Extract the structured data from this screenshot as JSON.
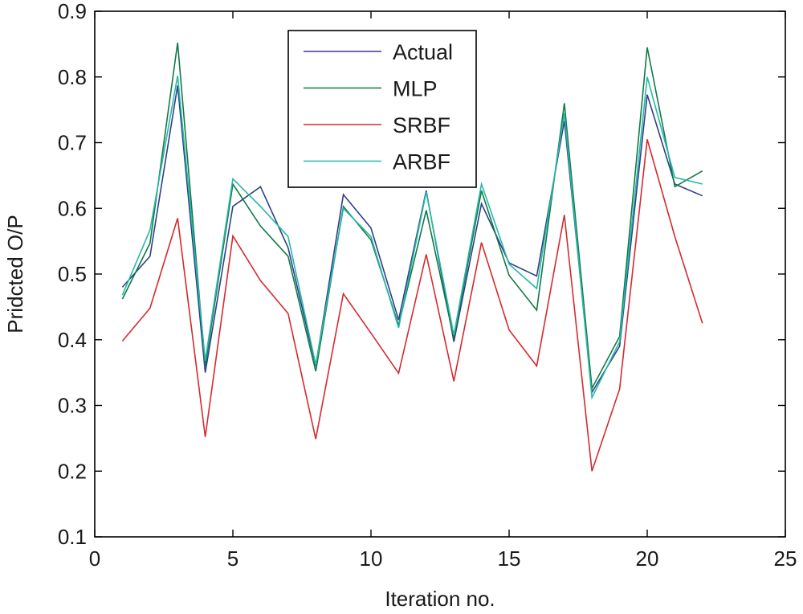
{
  "chart_data": {
    "type": "line",
    "title": "",
    "xlabel": "Iteration no.",
    "ylabel": "Pridcted O/P",
    "xlim": [
      0,
      25
    ],
    "ylim": [
      0.1,
      0.9
    ],
    "xticks": [
      0,
      5,
      10,
      15,
      20,
      25
    ],
    "yticks": [
      0.1,
      0.2,
      0.3,
      0.4,
      0.5,
      0.6,
      0.7,
      0.8,
      0.9
    ],
    "grid": false,
    "legend_position": "top-center",
    "x": [
      1,
      2,
      3,
      4,
      5,
      6,
      7,
      8,
      9,
      10,
      11,
      12,
      13,
      14,
      15,
      16,
      17,
      18,
      19,
      20,
      21,
      22
    ],
    "series": [
      {
        "name": "Actual",
        "color": "#2e3f8a",
        "values": [
          0.48,
          0.527,
          0.787,
          0.35,
          0.603,
          0.633,
          0.54,
          0.36,
          0.621,
          0.57,
          0.43,
          0.627,
          0.397,
          0.607,
          0.517,
          0.497,
          0.733,
          0.32,
          0.39,
          0.773,
          0.637,
          0.619
        ]
      },
      {
        "name": "MLP",
        "color": "#0f7a45",
        "values": [
          0.462,
          0.547,
          0.852,
          0.36,
          0.637,
          0.573,
          0.527,
          0.352,
          0.603,
          0.552,
          0.422,
          0.597,
          0.402,
          0.627,
          0.498,
          0.445,
          0.76,
          0.326,
          0.405,
          0.845,
          0.633,
          0.657
        ]
      },
      {
        "name": "SRBF",
        "color": "#d42a2f",
        "values": [
          0.398,
          0.448,
          0.585,
          0.252,
          0.558,
          0.49,
          0.44,
          0.249,
          0.47,
          0.41,
          0.349,
          0.53,
          0.337,
          0.548,
          0.415,
          0.36,
          0.59,
          0.2,
          0.325,
          0.705,
          0.557,
          0.425
        ]
      },
      {
        "name": "ARBF",
        "color": "#27b8a8",
        "values": [
          0.468,
          0.567,
          0.802,
          0.368,
          0.645,
          0.603,
          0.557,
          0.362,
          0.6,
          0.557,
          0.418,
          0.625,
          0.407,
          0.637,
          0.515,
          0.478,
          0.745,
          0.312,
          0.397,
          0.8,
          0.647,
          0.637
        ]
      }
    ]
  }
}
